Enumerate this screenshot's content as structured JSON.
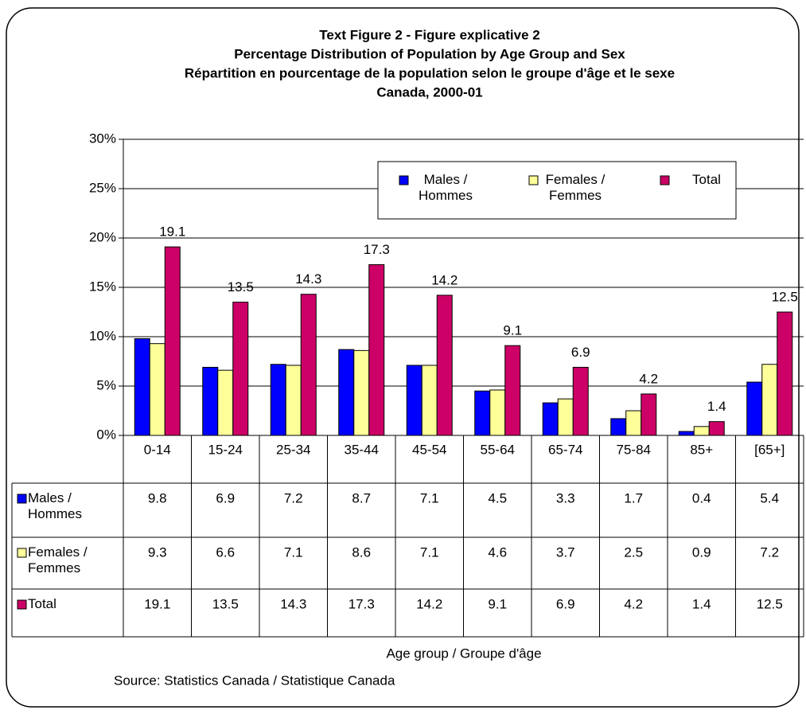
{
  "chart_data": {
    "type": "bar",
    "title": [
      "Text Figure 2 - Figure explicative 2",
      "Percentage Distribution of Population by Age Group and Sex",
      "Répartition en pourcentage de la population selon le groupe d'âge et le sexe",
      "Canada, 2000-01"
    ],
    "categories": [
      "0-14",
      "15-24",
      "25-34",
      "35-44",
      "45-54",
      "55-64",
      "65-74",
      "75-84",
      "85+",
      "[65+]"
    ],
    "series": [
      {
        "name": "Males / Hommes",
        "color": "#0000ff",
        "values": [
          9.8,
          6.9,
          7.2,
          8.7,
          7.1,
          4.5,
          3.3,
          1.7,
          0.4,
          5.4
        ]
      },
      {
        "name": "Females / Femmes",
        "color": "#ffff99",
        "values": [
          9.3,
          6.6,
          7.1,
          8.6,
          7.1,
          4.6,
          3.7,
          2.5,
          0.9,
          7.2
        ]
      },
      {
        "name": "Total",
        "color": "#cc0066",
        "values": [
          19.1,
          13.5,
          14.3,
          17.3,
          14.2,
          9.1,
          6.9,
          4.2,
          1.4,
          12.5
        ]
      }
    ],
    "ylim": [
      0,
      30
    ],
    "yticks": [
      {
        "value": 0,
        "label": "0%"
      },
      {
        "value": 5,
        "label": "5%"
      },
      {
        "value": 10,
        "label": "10%"
      },
      {
        "value": 15,
        "label": "15%"
      },
      {
        "value": 20,
        "label": "20%"
      },
      {
        "value": 25,
        "label": "25%"
      },
      {
        "value": 30,
        "label": "30%"
      }
    ],
    "grid": true,
    "xlabel": "Age group / Groupe d'âge",
    "source": "Source: Statistics Canada / Statistique Canada"
  }
}
